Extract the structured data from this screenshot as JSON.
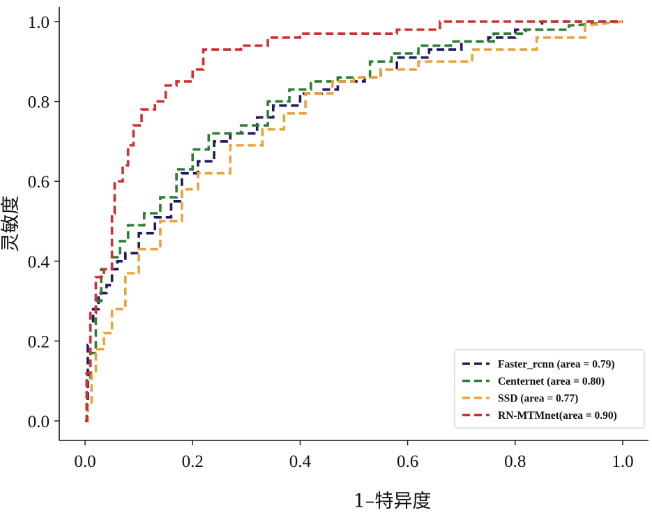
{
  "chart_data": {
    "type": "line",
    "xlabel": "1–特异度",
    "ylabel": "灵敏度",
    "xlim": [
      0.0,
      1.0
    ],
    "ylim": [
      0.0,
      1.0
    ],
    "xticks": [
      "0.0",
      "0.2",
      "0.4",
      "0.6",
      "0.8",
      "1.0"
    ],
    "yticks": [
      "0.0",
      "0.2",
      "0.4",
      "0.6",
      "0.8",
      "1.0"
    ],
    "grid": false,
    "legend_position": "lower-right",
    "line_style": "dashed",
    "series": [
      {
        "name": "Faster_rcnn (area = 0.79)",
        "color": "#1f1a5e",
        "x": [
          0.0,
          0.005,
          0.005,
          0.01,
          0.01,
          0.015,
          0.015,
          0.025,
          0.025,
          0.04,
          0.04,
          0.05,
          0.05,
          0.06,
          0.06,
          0.075,
          0.075,
          0.1,
          0.1,
          0.13,
          0.13,
          0.16,
          0.16,
          0.18,
          0.18,
          0.21,
          0.21,
          0.24,
          0.24,
          0.27,
          0.27,
          0.32,
          0.32,
          0.35,
          0.35,
          0.4,
          0.4,
          0.44,
          0.44,
          0.47,
          0.47,
          0.52,
          0.52,
          0.55,
          0.55,
          0.58,
          0.58,
          0.64,
          0.64,
          0.7,
          0.7,
          0.75,
          0.75,
          0.8,
          0.8,
          0.85,
          0.85,
          1.0
        ],
        "y": [
          0.0,
          0.0,
          0.19,
          0.19,
          0.25,
          0.25,
          0.28,
          0.28,
          0.32,
          0.32,
          0.34,
          0.34,
          0.38,
          0.38,
          0.4,
          0.4,
          0.42,
          0.42,
          0.47,
          0.47,
          0.51,
          0.51,
          0.55,
          0.55,
          0.62,
          0.62,
          0.65,
          0.65,
          0.7,
          0.7,
          0.72,
          0.72,
          0.76,
          0.76,
          0.79,
          0.79,
          0.82,
          0.82,
          0.83,
          0.83,
          0.85,
          0.85,
          0.86,
          0.86,
          0.88,
          0.88,
          0.91,
          0.91,
          0.93,
          0.93,
          0.95,
          0.95,
          0.96,
          0.96,
          0.98,
          0.98,
          1.0,
          1.0
        ]
      },
      {
        "name": "Centernet (area = 0.80)",
        "color": "#2e7d32",
        "x": [
          0.0,
          0.003,
          0.003,
          0.01,
          0.01,
          0.02,
          0.02,
          0.03,
          0.03,
          0.05,
          0.05,
          0.065,
          0.065,
          0.08,
          0.08,
          0.11,
          0.11,
          0.14,
          0.14,
          0.17,
          0.17,
          0.2,
          0.2,
          0.23,
          0.23,
          0.29,
          0.29,
          0.34,
          0.34,
          0.38,
          0.38,
          0.42,
          0.42,
          0.47,
          0.47,
          0.53,
          0.53,
          0.57,
          0.57,
          0.62,
          0.62,
          0.68,
          0.68,
          0.76,
          0.76,
          0.82,
          0.82,
          0.9,
          0.9,
          1.0
        ],
        "y": [
          0.0,
          0.0,
          0.1,
          0.1,
          0.17,
          0.17,
          0.3,
          0.3,
          0.38,
          0.38,
          0.41,
          0.41,
          0.45,
          0.45,
          0.49,
          0.49,
          0.52,
          0.52,
          0.56,
          0.56,
          0.63,
          0.63,
          0.68,
          0.68,
          0.72,
          0.72,
          0.74,
          0.74,
          0.8,
          0.8,
          0.83,
          0.83,
          0.85,
          0.85,
          0.86,
          0.86,
          0.9,
          0.9,
          0.92,
          0.92,
          0.94,
          0.94,
          0.95,
          0.95,
          0.97,
          0.97,
          0.98,
          0.98,
          0.99,
          1.0
        ]
      },
      {
        "name": "SSD (area = 0.77)",
        "color": "#e8a33a",
        "x": [
          0.0,
          0.005,
          0.005,
          0.012,
          0.012,
          0.02,
          0.02,
          0.035,
          0.035,
          0.05,
          0.05,
          0.075,
          0.075,
          0.1,
          0.1,
          0.14,
          0.14,
          0.18,
          0.18,
          0.21,
          0.21,
          0.27,
          0.27,
          0.33,
          0.33,
          0.37,
          0.37,
          0.41,
          0.41,
          0.46,
          0.46,
          0.5,
          0.5,
          0.55,
          0.55,
          0.62,
          0.62,
          0.72,
          0.72,
          0.84,
          0.84,
          0.93,
          0.93,
          1.0
        ],
        "y": [
          0.0,
          0.0,
          0.04,
          0.04,
          0.12,
          0.12,
          0.18,
          0.18,
          0.22,
          0.22,
          0.28,
          0.28,
          0.37,
          0.37,
          0.43,
          0.43,
          0.5,
          0.5,
          0.58,
          0.58,
          0.62,
          0.62,
          0.69,
          0.69,
          0.73,
          0.73,
          0.77,
          0.77,
          0.82,
          0.82,
          0.85,
          0.85,
          0.86,
          0.86,
          0.88,
          0.88,
          0.9,
          0.9,
          0.93,
          0.93,
          0.96,
          0.96,
          0.99,
          1.0
        ]
      },
      {
        "name": "RN-MTMnet(area = 0.90)",
        "color": "#d03030",
        "x": [
          0.0,
          0.003,
          0.003,
          0.01,
          0.01,
          0.02,
          0.02,
          0.035,
          0.035,
          0.05,
          0.05,
          0.055,
          0.055,
          0.07,
          0.07,
          0.08,
          0.08,
          0.09,
          0.09,
          0.105,
          0.105,
          0.13,
          0.13,
          0.15,
          0.15,
          0.17,
          0.17,
          0.2,
          0.2,
          0.22,
          0.22,
          0.29,
          0.29,
          0.34,
          0.34,
          0.4,
          0.4,
          0.58,
          0.58,
          0.66,
          0.66,
          0.8,
          0.8,
          1.0
        ],
        "y": [
          0.0,
          0.0,
          0.12,
          0.12,
          0.27,
          0.27,
          0.36,
          0.36,
          0.38,
          0.38,
          0.52,
          0.52,
          0.6,
          0.6,
          0.64,
          0.64,
          0.69,
          0.69,
          0.74,
          0.74,
          0.78,
          0.78,
          0.8,
          0.8,
          0.84,
          0.84,
          0.85,
          0.85,
          0.88,
          0.88,
          0.93,
          0.93,
          0.94,
          0.94,
          0.96,
          0.96,
          0.97,
          0.97,
          0.98,
          0.98,
          1.0,
          1.0,
          1.0,
          1.0
        ]
      }
    ]
  }
}
